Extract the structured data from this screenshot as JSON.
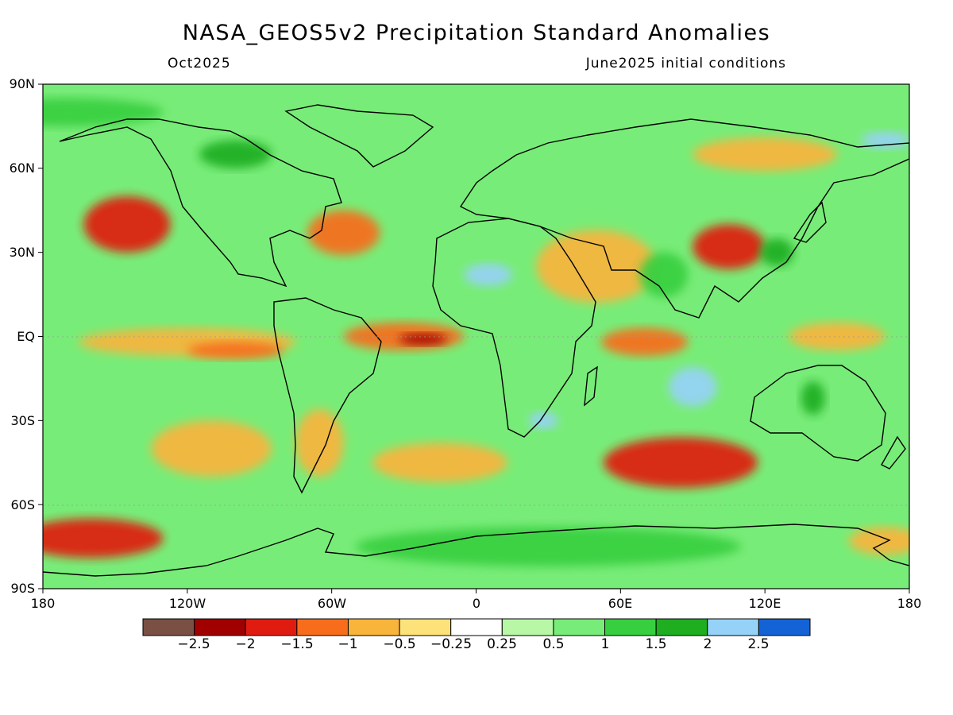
{
  "title": "NASA_GEOS5v2 Precipitation Standard Anomalies",
  "subtitle_left": "Oct2025",
  "subtitle_right": "June2025 initial conditions",
  "y_axis_labels": [
    "90N",
    "60N",
    "30N",
    "EQ",
    "30S",
    "60S",
    "90S"
  ],
  "x_axis_labels": [
    "180",
    "120W",
    "60W",
    "0",
    "60E",
    "120E",
    "180"
  ],
  "colorbar": {
    "colors": [
      "#7a5045",
      "#a00000",
      "#e01c10",
      "#f86d1c",
      "#f9b43c",
      "#fde27a",
      "#ffffff",
      "#b7f7a6",
      "#78ec78",
      "#37cf3f",
      "#1fae20",
      "#96d2f8",
      "#1463d6"
    ],
    "labels": [
      "-2.5",
      "-2",
      "-1.5",
      "-1",
      "-0.5",
      "-0.25",
      "0.25",
      "0.5",
      "1",
      "1.5",
      "2",
      "2.5"
    ]
  },
  "anomaly_fields": [
    {
      "name": "northeast-pacific-dry",
      "lon": -145,
      "lat": 40,
      "rx": 18,
      "ry": 10,
      "level": -1.5
    },
    {
      "name": "east-pacific-equatorial-dry",
      "lon": -120,
      "lat": -2,
      "rx": 45,
      "ry": 5,
      "level": -0.5
    },
    {
      "name": "central-pacific-dry-core",
      "lon": -100,
      "lat": -5,
      "rx": 20,
      "ry": 3,
      "level": -1.0
    },
    {
      "name": "atlantic-itcz-dry",
      "lon": -30,
      "lat": 0,
      "rx": 25,
      "ry": 5,
      "level": -1.0
    },
    {
      "name": "atlantic-itcz-dry-core",
      "lon": -22,
      "lat": -1,
      "rx": 10,
      "ry": 2,
      "level": -2.0
    },
    {
      "name": "western-atlantic-dry",
      "lon": -55,
      "lat": 37,
      "rx": 15,
      "ry": 8,
      "level": -1.0
    },
    {
      "name": "arabia-dry",
      "lon": 50,
      "lat": 25,
      "rx": 25,
      "ry": 13,
      "level": -0.5
    },
    {
      "name": "china-dry",
      "lon": 105,
      "lat": 32,
      "rx": 15,
      "ry": 8,
      "level": -1.5
    },
    {
      "name": "indian-ocean-dry",
      "lon": 70,
      "lat": -2,
      "rx": 18,
      "ry": 5,
      "level": -1.0
    },
    {
      "name": "southern-indian-dry",
      "lon": 85,
      "lat": -45,
      "rx": 32,
      "ry": 9,
      "level": -1.5
    },
    {
      "name": "south-pacific-dry",
      "lon": -110,
      "lat": -40,
      "rx": 25,
      "ry": 10,
      "level": -0.5
    },
    {
      "name": "south-atlantic-dry",
      "lon": -15,
      "lat": -45,
      "rx": 28,
      "ry": 7,
      "level": -0.5
    },
    {
      "name": "argentina-dry",
      "lon": -65,
      "lat": -38,
      "rx": 10,
      "ry": 12,
      "level": -0.5
    },
    {
      "name": "amundsen-sea-dry",
      "lon": -160,
      "lat": -72,
      "rx": 30,
      "ry": 7,
      "level": -1.5
    },
    {
      "name": "ross-sea-dry",
      "lon": 170,
      "lat": -73,
      "rx": 15,
      "ry": 5,
      "level": -0.5
    },
    {
      "name": "west-pacific-dry",
      "lon": 150,
      "lat": 0,
      "rx": 20,
      "ry": 5,
      "level": -0.5
    },
    {
      "name": "siberia-dry",
      "lon": 120,
      "lat": 65,
      "rx": 30,
      "ry": 6,
      "level": -0.5
    },
    {
      "name": "sahara-wet",
      "lon": 5,
      "lat": 22,
      "rx": 10,
      "ry": 4,
      "level": 2.5
    },
    {
      "name": "indian-ocean-wet",
      "lon": 90,
      "lat": -18,
      "rx": 10,
      "ry": 7,
      "level": 2.5
    },
    {
      "name": "south-africa-wet",
      "lon": 28,
      "lat": -30,
      "rx": 6,
      "ry": 3,
      "level": 2.5
    },
    {
      "name": "australia-wet",
      "lon": 140,
      "lat": -22,
      "rx": 5,
      "ry": 6,
      "level": 2.0
    },
    {
      "name": "canada-wet",
      "lon": -100,
      "lat": 65,
      "rx": 15,
      "ry": 5,
      "level": 2.0
    },
    {
      "name": "siberia-wet",
      "lon": 170,
      "lat": 70,
      "rx": 10,
      "ry": 3,
      "level": 2.5
    },
    {
      "name": "china-wet",
      "lon": 125,
      "lat": 30,
      "rx": 7,
      "ry": 5,
      "level": 2.0
    },
    {
      "name": "india-wet",
      "lon": 78,
      "lat": 22,
      "rx": 10,
      "ry": 8,
      "level": 1.5
    },
    {
      "name": "southern-ocean-wet",
      "lon": 30,
      "lat": -75,
      "rx": 80,
      "ry": 7,
      "level": 1.5
    },
    {
      "name": "north-pacific-wet",
      "lon": -170,
      "lat": 80,
      "rx": 40,
      "ry": 5,
      "level": 1.5
    }
  ]
}
